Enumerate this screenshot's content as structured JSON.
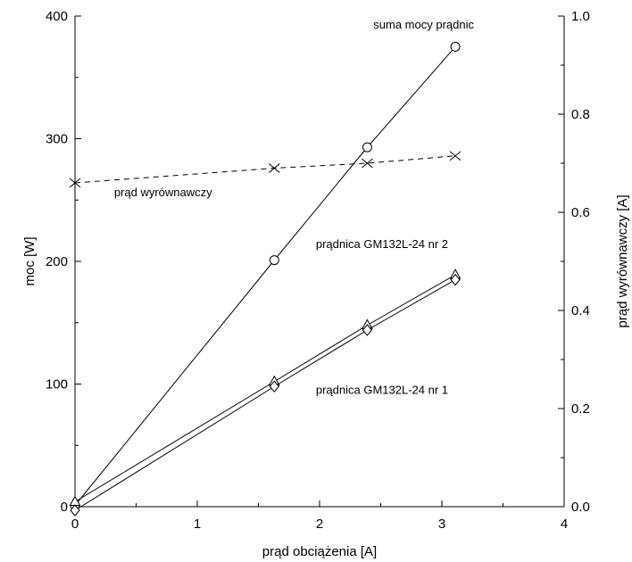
{
  "chart_data": {
    "type": "line",
    "xlabel": "prąd obciążenia [A]",
    "ylabel": "moc [W]",
    "y2label": "prąd wyrównawczy [A]",
    "xlim": [
      0,
      4
    ],
    "ylim": [
      0,
      400
    ],
    "y2lim": [
      0,
      1.0
    ],
    "x_ticks": [
      "0",
      "1",
      "2",
      "3",
      "4"
    ],
    "y_ticks": [
      "0",
      "100",
      "200",
      "300",
      "400"
    ],
    "y2_ticks": [
      "0.0",
      "0.2",
      "0.4",
      "0.6",
      "0.8",
      "1.0"
    ],
    "grid": false,
    "series": [
      {
        "axis": "left",
        "marker": "circle",
        "line": "solid",
        "x": [
          0,
          1.63,
          2.39,
          3.11
        ],
        "y": [
          1,
          201,
          293,
          375
        ]
      },
      {
        "axis": "left",
        "marker": "triangle",
        "line": "solid",
        "x": [
          0,
          1.63,
          2.39,
          3.11
        ],
        "y": [
          4,
          102,
          148,
          189
        ]
      },
      {
        "axis": "left",
        "marker": "diamond",
        "line": "solid",
        "x": [
          0,
          1.63,
          2.39,
          3.11
        ],
        "y": [
          -3,
          98,
          144,
          185
        ]
      },
      {
        "axis": "right",
        "marker": "x",
        "line": "dashed",
        "x": [
          0,
          1.63,
          2.39,
          3.11
        ],
        "y": [
          0.66,
          0.69,
          0.7,
          0.715
        ]
      }
    ],
    "annotations": [
      {
        "text": "suma mocy prądnic",
        "x": 2.44,
        "y": 390
      },
      {
        "text": "prąd wyrównawczy",
        "x": 0.32,
        "y": 253
      },
      {
        "text": "prądnica GM132L-24 nr 2",
        "x": 1.97,
        "y": 211
      },
      {
        "text": "prądnica GM132L-24 nr 1",
        "x": 1.97,
        "y": 92
      }
    ]
  }
}
